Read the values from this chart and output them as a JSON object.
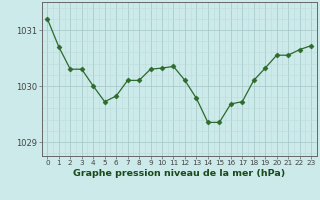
{
  "x": [
    0,
    1,
    2,
    3,
    4,
    5,
    6,
    7,
    8,
    9,
    10,
    11,
    12,
    13,
    14,
    15,
    16,
    17,
    18,
    19,
    20,
    21,
    22,
    23
  ],
  "y": [
    1031.2,
    1030.7,
    1030.3,
    1030.3,
    1030.0,
    1029.72,
    1029.82,
    1030.1,
    1030.1,
    1030.3,
    1030.32,
    1030.35,
    1030.1,
    1029.78,
    1029.35,
    1029.35,
    1029.68,
    1029.72,
    1030.1,
    1030.32,
    1030.55,
    1030.55,
    1030.65,
    1030.72
  ],
  "line_color": "#2d6a2d",
  "marker": "D",
  "marker_size": 2.5,
  "bg_color": "#cceaea",
  "grid_major_color": "#aacccc",
  "grid_minor_color": "#bbdada",
  "axis_color": "#666666",
  "tick_color": "#444444",
  "xlabel": "Graphe pression niveau de la mer (hPa)",
  "xlabel_color": "#1a4a1a",
  "ylim": [
    1028.75,
    1031.5
  ],
  "yticks": [
    1029,
    1030,
    1031
  ],
  "xtick_fontsize": 5.2,
  "ytick_fontsize": 6.0,
  "xlabel_fontsize": 6.8
}
